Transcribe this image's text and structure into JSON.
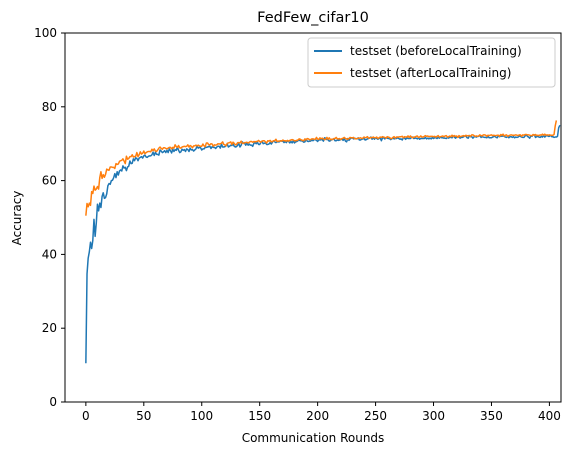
{
  "chart_data": {
    "type": "line",
    "title": "FedFew_cifar10",
    "xlabel": "Communication Rounds",
    "ylabel": "Accuracy",
    "xlim": [
      -18,
      410
    ],
    "ylim": [
      0,
      100
    ],
    "xticks": [
      0,
      50,
      100,
      150,
      200,
      250,
      300,
      350,
      400
    ],
    "yticks": [
      0,
      20,
      40,
      60,
      80,
      100
    ],
    "grid": false,
    "legend_position": "upper right",
    "x_step": 1,
    "series": [
      {
        "name": "testset (beforeLocalTraining)",
        "color": "#1f77b4",
        "values": [
          10.5,
          34.7,
          39.0,
          40.7,
          43.3,
          41.6,
          43.8,
          49.5,
          44.9,
          48.5,
          53.6,
          51.8,
          53.9,
          52.7,
          55.7,
          56.7,
          55.2,
          55.4,
          56.4,
          58.6,
          59.2,
          59.0,
          60.0,
          60.1,
          60.8,
          61.9,
          60.8,
          62.4,
          61.5,
          62.6,
          62.9,
          62.6,
          64.0,
          63.4,
          63.6,
          62.7,
          63.7,
          63.9,
          65.3,
          64.6,
          64.7,
          65.9,
          65.4,
          66.2,
          66.0,
          65.4,
          66.1,
          66.3,
          66.5,
          66.1,
          66.7,
          66.9,
          66.4,
          66.3,
          66.6,
          66.7,
          66.7,
          67.0,
          67.7,
          66.8,
          67.7,
          67.1,
          67.1,
          66.9,
          68.3,
          68.0,
          67.6,
          67.8,
          68.1,
          67.6,
          68.2,
          67.6,
          68.6,
          68.1,
          67.5,
          68.5,
          67.9,
          68.4,
          68.2,
          69.1,
          68.2,
          67.6,
          67.8,
          68.5,
          68.2,
          68.4,
          67.9,
          68.6,
          68.4,
          67.9,
          68.8,
          68.3,
          68.4,
          68.0,
          68.3,
          68.6,
          69.4,
          68.8,
          69.0,
          68.9,
          68.3,
          68.6,
          68.6,
          69.0,
          69.0,
          69.1,
          69.2,
          69.3,
          68.7,
          69.2,
          69.0,
          69.0,
          68.7,
          69.1,
          69.3,
          69.3,
          68.8,
          69.9,
          69.1,
          69.1,
          69.2,
          69.5,
          69.9,
          69.1,
          69.3,
          69.6,
          69.5,
          69.9,
          69.3,
          69.1,
          69.2,
          69.6,
          70.0,
          69.1,
          69.6,
          70.5,
          70.1,
          70.1,
          69.6,
          70.2,
          69.6,
          69.9,
          69.6,
          69.6,
          69.3,
          70.1,
          70.3,
          70.0,
          70.4,
          69.8,
          69.8,
          70.3,
          70.7,
          70.0,
          70.1,
          70.3,
          69.8,
          69.8,
          69.9,
          70.3,
          69.9,
          70.4,
          70.8,
          70.5,
          70.3,
          70.5,
          70.5,
          70.5,
          70.8,
          70.7,
          70.7,
          70.3,
          70.6,
          70.3,
          70.8,
          70.6,
          70.2,
          70.6,
          70.2,
          70.8,
          70.2,
          70.5,
          70.6,
          70.8,
          71.0,
          70.8,
          70.8,
          70.7,
          70.4,
          70.5,
          71.2,
          70.7,
          70.6,
          70.7,
          70.7,
          71.0,
          70.8,
          71.1,
          71.1,
          70.9,
          70.6,
          71.1,
          71.0,
          71.1,
          71.1,
          70.7,
          71.6,
          71.5,
          71.1,
          71.1,
          70.7,
          70.8,
          71.1,
          71.2,
          71.3,
          70.8,
          70.8,
          71.0,
          70.9,
          71.0,
          71.1,
          71.3,
          70.9,
          71.4,
          70.7,
          70.5,
          71.4,
          70.9,
          71.3,
          71.5,
          71.6,
          71.3,
          71.4,
          71.4,
          71.3,
          71.6,
          71.0,
          71.0,
          71.2,
          71.3,
          71.4,
          71.0,
          71.1,
          71.3,
          71.4,
          71.6,
          71.8,
          71.2,
          71.7,
          71.2,
          71.6,
          71.4,
          71.2,
          71.4,
          71.6,
          70.8,
          71.6,
          71.6,
          71.3,
          71.6,
          71.5,
          71.4,
          71.4,
          71.1,
          71.3,
          71.6,
          71.3,
          71.4,
          71.4,
          71.6,
          71.4,
          71.2,
          71.3,
          71.0,
          71.6,
          71.5,
          71.2,
          71.6,
          71.4,
          71.4,
          71.4,
          71.7,
          71.8,
          71.4,
          71.5,
          71.5,
          71.3,
          71.6,
          71.2,
          71.4,
          71.4,
          71.4,
          71.4,
          71.7,
          71.3,
          71.5,
          71.3,
          71.5,
          71.3,
          71.7,
          71.4,
          71.6,
          71.6,
          71.4,
          71.7,
          71.5,
          71.8,
          71.6,
          71.6,
          71.5,
          71.5,
          71.4,
          71.7,
          71.5,
          71.7,
          71.7,
          71.6,
          72.1,
          71.8,
          71.5,
          71.8,
          71.8,
          71.8,
          71.5,
          71.7,
          71.7,
          71.9,
          72.1,
          72.0,
          71.6,
          71.5,
          72.2,
          71.9,
          71.9,
          71.5,
          71.9,
          71.9,
          71.8,
          72.0,
          72.0,
          72.3,
          71.7,
          71.9,
          71.8,
          71.7,
          71.7,
          71.6,
          72.0,
          71.6,
          71.6,
          71.6,
          71.8,
          71.9,
          72.1,
          71.7,
          71.6,
          72.2,
          71.9,
          72.1,
          72.0,
          72.1,
          72.0,
          71.8,
          71.7,
          72.0,
          71.6,
          71.9,
          71.9,
          71.7,
          71.9,
          71.6,
          71.8,
          71.7,
          71.8,
          72.1,
          72.0,
          71.8,
          71.7,
          71.7,
          72.1,
          72.4,
          72.0,
          71.8,
          71.5,
          72.1,
          72.0,
          72.4,
          72.4,
          71.7,
          71.9,
          72.0,
          71.8,
          71.7,
          72.0,
          71.8,
          72.3,
          71.8,
          72.1,
          72.3,
          72.0,
          72.0,
          72.3,
          71.9,
          71.9,
          71.7,
          71.8,
          71.8,
          72.0,
          74.3,
          75.0
        ]
      },
      {
        "name": "testset (afterLocalTraining)",
        "color": "#ff7f0e",
        "values": [
          50.5,
          53.8,
          52.9,
          53.9,
          53.3,
          57.0,
          56.5,
          58.5,
          57.4,
          57.7,
          58.4,
          57.7,
          60.8,
          62.4,
          60.6,
          61.6,
          60.9,
          61.7,
          63.1,
          62.9,
          62.8,
          63.7,
          63.7,
          63.6,
          63.6,
          63.3,
          64.6,
          64.4,
          64.5,
          65.2,
          65.4,
          65.5,
          65.9,
          65.3,
          64.6,
          66.6,
          65.8,
          66.0,
          66.5,
          66.5,
          67.0,
          66.4,
          66.5,
          66.6,
          67.6,
          66.5,
          67.0,
          67.8,
          67.2,
          67.4,
          68.0,
          67.3,
          67.6,
          67.8,
          67.9,
          67.9,
          67.8,
          68.5,
          68.1,
          68.6,
          68.0,
          67.9,
          68.3,
          68.8,
          69.1,
          68.7,
          68.5,
          68.9,
          68.9,
          68.7,
          68.6,
          68.8,
          69.0,
          69.0,
          68.6,
          69.0,
          68.8,
          69.7,
          69.2,
          69.0,
          69.5,
          68.9,
          68.8,
          69.1,
          69.2,
          69.3,
          69.2,
          69.3,
          69.7,
          69.1,
          69.5,
          69.3,
          68.9,
          69.4,
          69.4,
          69.6,
          69.4,
          69.6,
          69.4,
          69.3,
          69.3,
          69.9,
          69.4,
          69.2,
          70.2,
          70.2,
          69.7,
          69.7,
          70.0,
          69.9,
          69.3,
          69.7,
          69.6,
          69.7,
          70.0,
          69.9,
          70.0,
          70.1,
          70.5,
          69.8,
          69.7,
          69.4,
          70.1,
          70.2,
          70.3,
          70.5,
          69.8,
          70.4,
          70.1,
          69.7,
          69.8,
          70.3,
          70.3,
          70.2,
          70.7,
          70.1,
          70.1,
          70.3,
          70.3,
          70.4,
          70.2,
          70.4,
          70.6,
          70.6,
          70.4,
          70.6,
          70.5,
          70.6,
          70.6,
          70.9,
          70.6,
          70.4,
          70.7,
          70.8,
          70.8,
          70.5,
          70.2,
          70.8,
          70.7,
          70.9,
          70.5,
          70.6,
          70.8,
          70.8,
          71.2,
          70.6,
          70.7,
          70.7,
          70.8,
          70.7,
          71.0,
          70.8,
          70.8,
          70.7,
          70.9,
          70.7,
          70.9,
          71.0,
          71.1,
          71.0,
          70.8,
          70.8,
          70.9,
          71.0,
          71.3,
          71.2,
          71.0,
          70.9,
          70.8,
          71.3,
          71.0,
          71.4,
          71.3,
          71.1,
          71.1,
          71.3,
          71.3,
          71.2,
          71.2,
          71.7,
          71.2,
          71.2,
          71.6,
          71.3,
          71.5,
          71.3,
          71.1,
          71.2,
          71.7,
          71.2,
          71.6,
          71.1,
          71.2,
          71.1,
          71.4,
          71.4,
          71.7,
          71.3,
          71.3,
          71.4,
          71.1,
          71.4,
          71.5,
          71.7,
          71.4,
          71.3,
          71.2,
          71.4,
          71.7,
          71.6,
          71.6,
          71.7,
          71.4,
          71.3,
          71.4,
          71.5,
          71.5,
          71.6,
          71.4,
          71.5,
          71.8,
          71.6,
          71.7,
          71.9,
          71.5,
          71.5,
          71.7,
          71.6,
          71.8,
          71.6,
          71.6,
          71.8,
          71.4,
          71.6,
          71.8,
          71.7,
          71.9,
          71.8,
          71.7,
          71.5,
          71.9,
          71.8,
          71.7,
          71.4,
          71.4,
          71.7,
          71.9,
          71.5,
          71.8,
          71.8,
          71.8,
          71.9,
          71.9,
          72.0,
          71.6,
          71.9,
          71.8,
          71.8,
          72.1,
          71.7,
          72.1,
          71.8,
          71.6,
          71.8,
          71.8,
          72.0,
          72.1,
          71.7,
          71.8,
          72.1,
          71.8,
          71.8,
          72.0,
          72.2,
          72.0,
          72.1,
          71.9,
          72.0,
          72.0,
          72.0,
          71.9,
          72.0,
          71.8,
          72.0,
          72.2,
          71.8,
          71.9,
          72.0,
          72.1,
          71.9,
          72.1,
          72.2,
          71.8,
          71.9,
          72.1,
          71.9,
          72.3,
          71.9,
          72.2,
          72.0,
          72.1,
          71.7,
          72.2,
          71.9,
          72.0,
          72.1,
          72.2,
          72.0,
          72.3,
          72.1,
          72.2,
          72.2,
          72.0,
          72.4,
          72.4,
          72.2,
          72.0,
          72.1,
          72.0,
          72.1,
          72.4,
          72.2,
          72.1,
          72.4,
          72.4,
          72.3,
          72.0,
          72.3,
          72.2,
          72.3,
          72.4,
          72.2,
          72.3,
          72.2,
          72.2,
          72.3,
          72.3,
          72.0,
          72.5,
          72.3,
          72.6,
          72.1,
          72.3,
          72.4,
          72.0,
          72.2,
          72.3,
          72.4,
          72.3,
          72.3,
          72.3,
          72.4,
          72.3,
          72.2,
          72.4,
          72.4,
          72.0,
          72.4,
          72.3,
          72.5,
          72.5,
          72.4,
          72.4,
          72.3,
          72.2,
          72.2,
          72.5,
          72.3,
          72.5,
          72.2,
          72.3,
          72.2,
          72.4,
          72.3,
          72.6,
          72.3,
          72.6,
          72.3,
          72.4,
          72.3,
          72.4,
          72.3,
          72.3,
          72.3,
          72.5,
          74.8,
          76.3
        ]
      }
    ]
  }
}
